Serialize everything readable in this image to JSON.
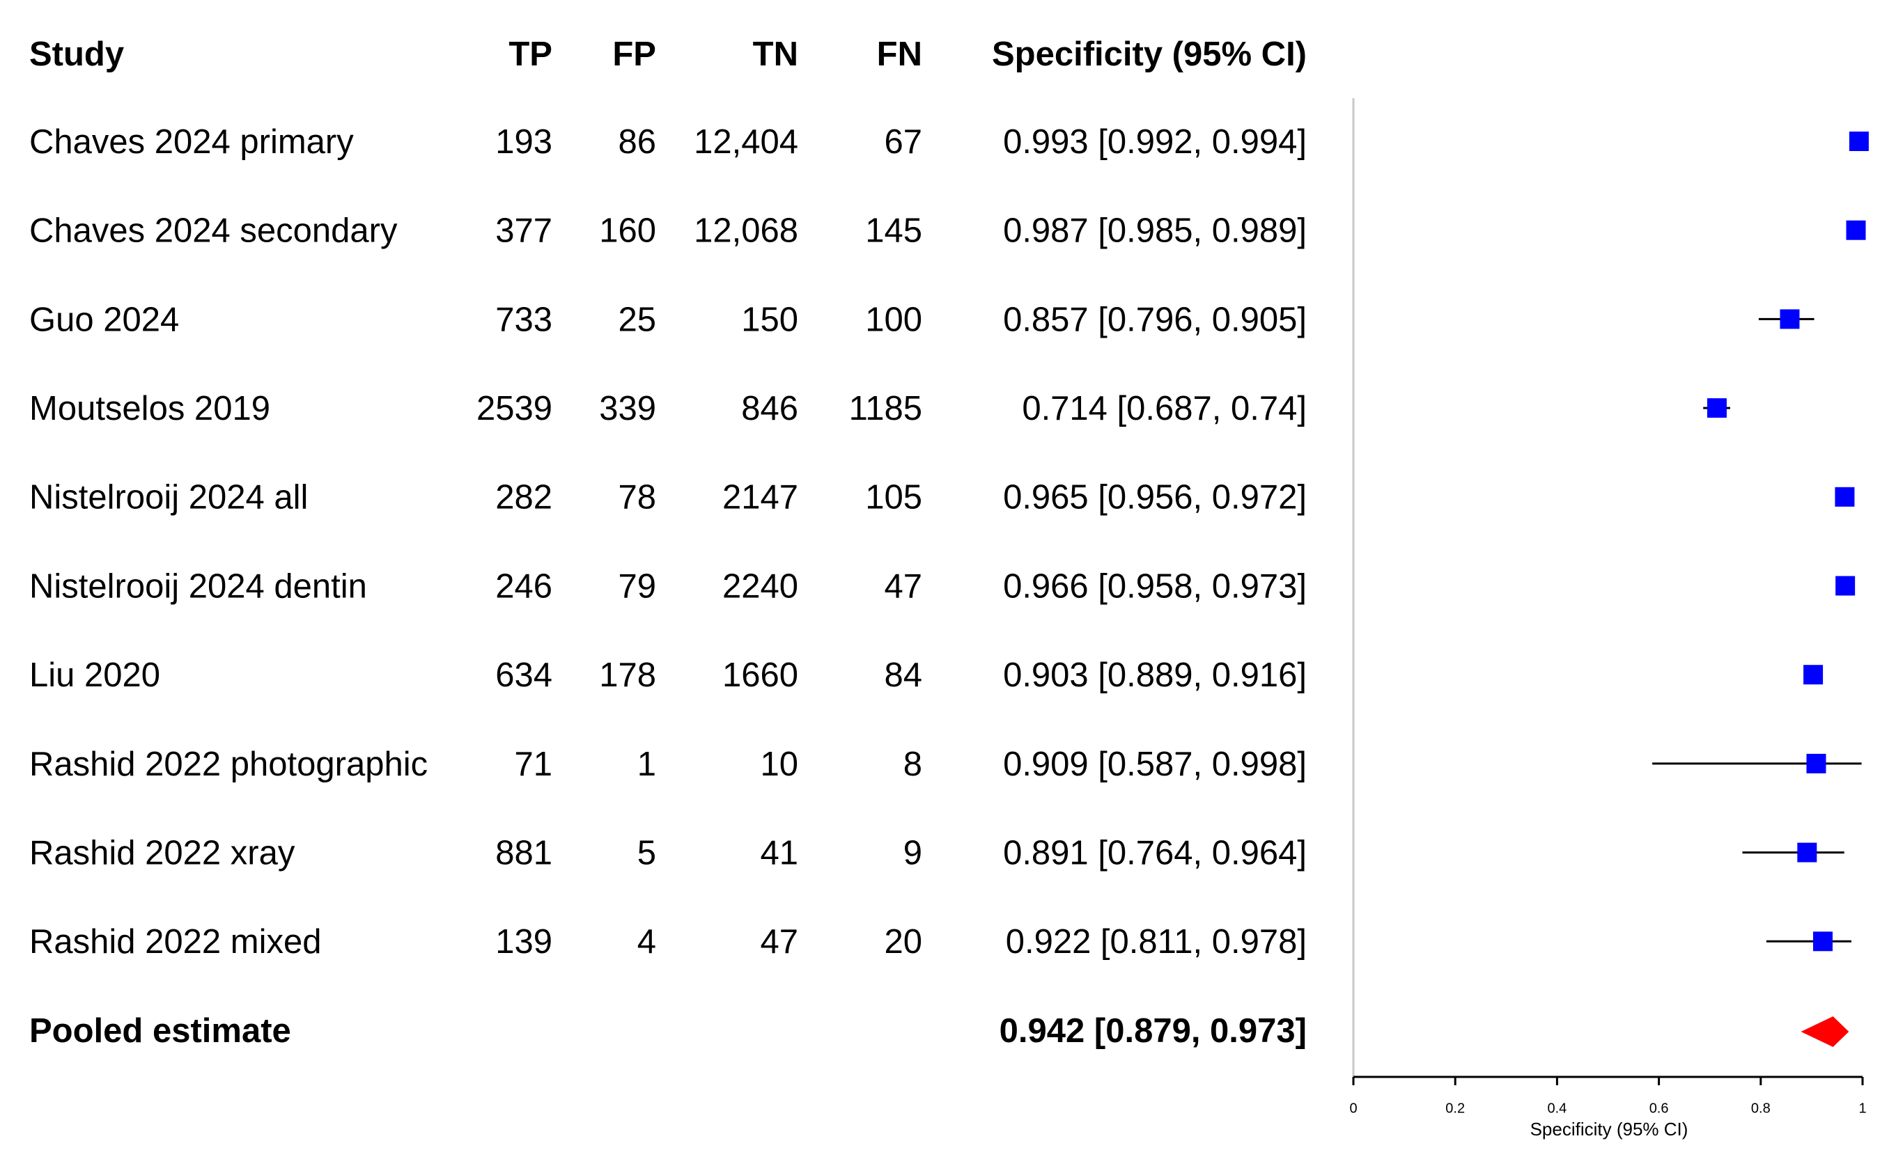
{
  "chart_data": {
    "type": "forest",
    "columns": [
      "Study",
      "TP",
      "FP",
      "TN",
      "FN",
      "Specificity (95% CI)"
    ],
    "rows": [
      [
        "Chaves 2024 primary",
        "193",
        "86",
        "12,404",
        "67",
        "0.993 [0.992, 0.994]"
      ],
      [
        "Chaves 2024 secondary",
        "377",
        "160",
        "12,068",
        "145",
        "0.987 [0.985, 0.989]"
      ],
      [
        "Guo 2024",
        "733",
        "25",
        "150",
        "100",
        "0.857 [0.796, 0.905]"
      ],
      [
        "Moutselos 2019",
        "2539",
        "339",
        "846",
        "1185",
        "0.714 [0.687, 0.74]"
      ],
      [
        "Nistelrooij 2024 all",
        "282",
        "78",
        "2147",
        "105",
        "0.965 [0.956, 0.972]"
      ],
      [
        "Nistelrooij 2024 dentin",
        "246",
        "79",
        "2240",
        "47",
        "0.966 [0.958, 0.973]"
      ],
      [
        "Liu 2020",
        "634",
        "178",
        "1660",
        "84",
        "0.903 [0.889, 0.916]"
      ],
      [
        "Rashid 2022 photographic",
        "71",
        "1",
        "10",
        "8",
        "0.909 [0.587, 0.998]"
      ],
      [
        "Rashid 2022 xray",
        "881",
        "5",
        "41",
        "9",
        "0.891 [0.764, 0.964]"
      ],
      [
        "Rashid 2022 mixed",
        "139",
        "4",
        "47",
        "20",
        "0.922 [0.811, 0.978]"
      ]
    ],
    "estimates": [
      0.993,
      0.987,
      0.857,
      0.714,
      0.965,
      0.966,
      0.903,
      0.909,
      0.891,
      0.922
    ],
    "lower": [
      0.992,
      0.985,
      0.796,
      0.687,
      0.956,
      0.958,
      0.889,
      0.587,
      0.764,
      0.811
    ],
    "upper": [
      0.994,
      0.989,
      0.905,
      0.74,
      0.972,
      0.973,
      0.916,
      0.998,
      0.964,
      0.978
    ],
    "pooled": {
      "label": "Pooled estimate",
      "ci_label": "0.942 [0.879, 0.973]",
      "estimate": 0.942,
      "lower": 0.879,
      "upper": 0.973
    },
    "xlim": [
      0,
      1
    ],
    "xticks": [
      0,
      0.2,
      0.4,
      0.6,
      0.8,
      1
    ],
    "xlabel": "Specificity (95% CI)",
    "color": "#0000ff",
    "pooled_color": "#ff0000"
  }
}
